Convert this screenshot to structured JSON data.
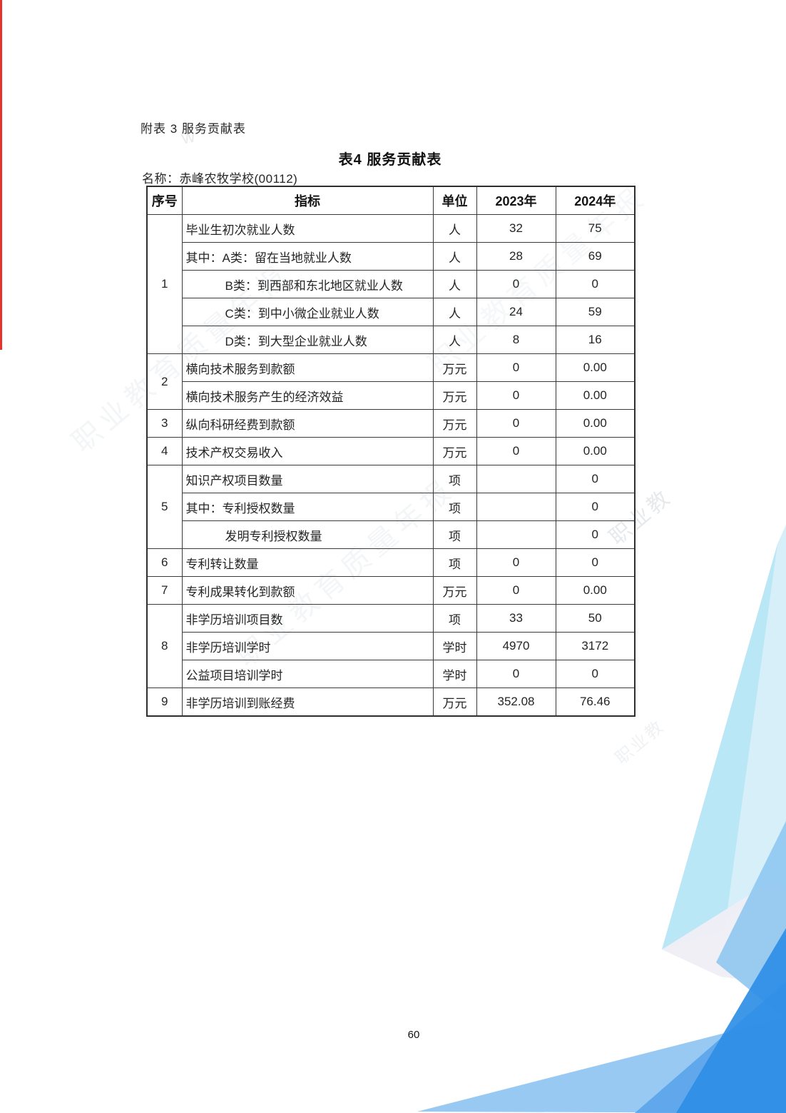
{
  "page": {
    "doc_label": "附表 3 服务贡献表",
    "table_title": "表4 服务贡献表",
    "name_line": "名称：赤峰农牧学校(00112)",
    "page_number": "60"
  },
  "watermark": {
    "text": "职业教育质量年报",
    "fragment": "职业教",
    "logo_fragment": "W"
  },
  "colors": {
    "red_margin_line": "#e63228",
    "table_border": "#2e2e2e",
    "decoration": [
      "#d4eef9",
      "#b7e5f4",
      "#efeef6",
      "#8fc6f1",
      "#8cc3f2",
      "#5aa4ea",
      "#2f8ee6"
    ]
  },
  "table": {
    "headers": [
      "序号",
      "指标",
      "单位",
      "2023年",
      "2024年"
    ],
    "groups": [
      {
        "no": "1",
        "rows": [
          {
            "indicator": "毕业生初次就业人数",
            "indent": 0,
            "unit": "人",
            "y2023": "32",
            "y2024": "75"
          },
          {
            "indicator": "其中：A类：留在当地就业人数",
            "indent": 0,
            "unit": "人",
            "y2023": "28",
            "y2024": "69"
          },
          {
            "indicator": "B类：到西部和东北地区就业人数",
            "indent": 1,
            "unit": "人",
            "y2023": "0",
            "y2024": "0"
          },
          {
            "indicator": "C类：到中小微企业就业人数",
            "indent": 1,
            "unit": "人",
            "y2023": "24",
            "y2024": "59"
          },
          {
            "indicator": "D类：到大型企业就业人数",
            "indent": 1,
            "unit": "人",
            "y2023": "8",
            "y2024": "16"
          }
        ]
      },
      {
        "no": "2",
        "rows": [
          {
            "indicator": "横向技术服务到款额",
            "indent": 0,
            "unit": "万元",
            "y2023": "0",
            "y2024": "0.00"
          },
          {
            "indicator": "横向技术服务产生的经济效益",
            "indent": 0,
            "unit": "万元",
            "y2023": "0",
            "y2024": "0.00"
          }
        ]
      },
      {
        "no": "3",
        "rows": [
          {
            "indicator": "纵向科研经费到款额",
            "indent": 0,
            "unit": "万元",
            "y2023": "0",
            "y2024": "0.00"
          }
        ]
      },
      {
        "no": "4",
        "rows": [
          {
            "indicator": "技术产权交易收入",
            "indent": 0,
            "unit": "万元",
            "y2023": "0",
            "y2024": "0.00"
          }
        ]
      },
      {
        "no": "5",
        "rows": [
          {
            "indicator": "知识产权项目数量",
            "indent": 0,
            "unit": "项",
            "y2023": "",
            "y2024": "0"
          },
          {
            "indicator": "其中：专利授权数量",
            "indent": 0,
            "unit": "项",
            "y2023": "",
            "y2024": "0"
          },
          {
            "indicator": "发明专利授权数量",
            "indent": 1,
            "unit": "项",
            "y2023": "",
            "y2024": "0"
          }
        ]
      },
      {
        "no": "6",
        "rows": [
          {
            "indicator": "专利转让数量",
            "indent": 0,
            "unit": "项",
            "y2023": "0",
            "y2024": "0"
          }
        ]
      },
      {
        "no": "7",
        "rows": [
          {
            "indicator": "专利成果转化到款额",
            "indent": 0,
            "unit": "万元",
            "y2023": "0",
            "y2024": "0.00"
          }
        ]
      },
      {
        "no": "8",
        "rows": [
          {
            "indicator": "非学历培训项目数",
            "indent": 0,
            "unit": "项",
            "y2023": "33",
            "y2024": "50"
          },
          {
            "indicator": "非学历培训学时",
            "indent": 0,
            "unit": "学时",
            "y2023": "4970",
            "y2024": "3172"
          },
          {
            "indicator": "公益项目培训学时",
            "indent": 0,
            "unit": "学时",
            "y2023": "0",
            "y2024": "0"
          }
        ]
      },
      {
        "no": "9",
        "rows": [
          {
            "indicator": "非学历培训到账经费",
            "indent": 0,
            "unit": "万元",
            "y2023": "352.08",
            "y2024": "76.46"
          }
        ]
      }
    ]
  }
}
